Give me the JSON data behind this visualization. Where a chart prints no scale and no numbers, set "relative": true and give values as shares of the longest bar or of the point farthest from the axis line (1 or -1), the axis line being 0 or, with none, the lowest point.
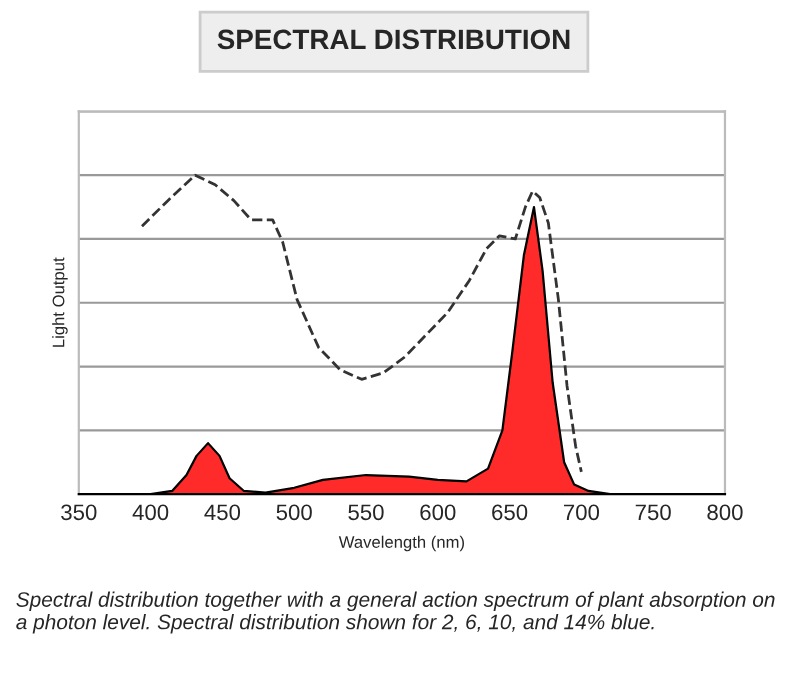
{
  "chart_data": {
    "type": "area",
    "title": "SPECTRAL DISTRIBUTION",
    "xlabel": "Wavelength (nm)",
    "ylabel": "Light Output",
    "relative": true,
    "xlim": [
      350,
      800
    ],
    "xticks": [
      350,
      400,
      450,
      500,
      550,
      600,
      650,
      700,
      750,
      800
    ],
    "grid": "y",
    "series": [
      {
        "color": "#ff2a2a",
        "x": [
          350,
          400,
          415,
          425,
          432,
          440,
          448,
          455,
          465,
          480,
          500,
          520,
          550,
          580,
          600,
          620,
          635,
          645,
          652,
          660,
          667,
          673,
          680,
          688,
          695,
          705,
          720,
          800
        ],
        "values": [
          0,
          0,
          0.01,
          0.06,
          0.12,
          0.16,
          0.12,
          0.05,
          0.01,
          0.005,
          0.02,
          0.045,
          0.06,
          0.055,
          0.045,
          0.04,
          0.08,
          0.2,
          0.45,
          0.75,
          0.9,
          0.7,
          0.35,
          0.1,
          0.03,
          0.01,
          0,
          0
        ]
      },
      {
        "type": "line",
        "color": "#333333",
        "line_style": "dashed",
        "x": [
          394,
          412,
          431,
          445,
          458,
          470,
          485,
          492,
          502,
          517,
          532,
          547,
          562,
          577,
          592,
          607,
          622,
          634,
          643,
          654,
          661,
          666,
          671,
          677,
          684,
          690,
          696,
          700
        ],
        "values": [
          0.84,
          0.92,
          1.0,
          0.97,
          0.92,
          0.86,
          0.86,
          0.79,
          0.61,
          0.46,
          0.39,
          0.36,
          0.38,
          0.43,
          0.5,
          0.57,
          0.67,
          0.77,
          0.81,
          0.8,
          0.9,
          0.95,
          0.93,
          0.85,
          0.61,
          0.34,
          0.15,
          0.07
        ]
      }
    ],
    "annotations": [
      "Spectral distribution together with a general action spectrum of plant absorption on a photon level. Spectral distribution shown for 2, 6, 10, and 14% blue."
    ]
  }
}
